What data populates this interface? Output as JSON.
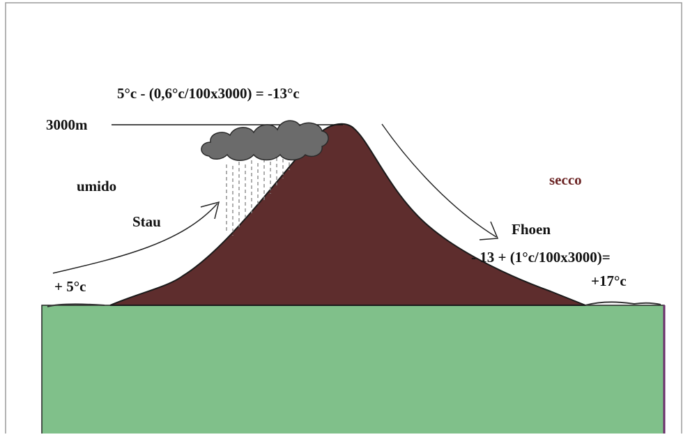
{
  "labels": {
    "top_formula": "5°c - (0,6°c/100x3000) = -13°c",
    "altitude": "3000m",
    "humid": "umido",
    "dry": "secco",
    "stau": "Stau",
    "foehn": "Fhoen",
    "right_formula": "- 13 + (1°c/100x3000)=",
    "right_result": "+17°c",
    "left_temp": "+ 5°c"
  },
  "colors": {
    "mountain": "#5e2d2d",
    "ground": "#80c08a",
    "cloud": "#6b6b6b",
    "rain": "#8a8a8a",
    "dry_text": "#6b2424",
    "frame": "#9a9a9a"
  }
}
